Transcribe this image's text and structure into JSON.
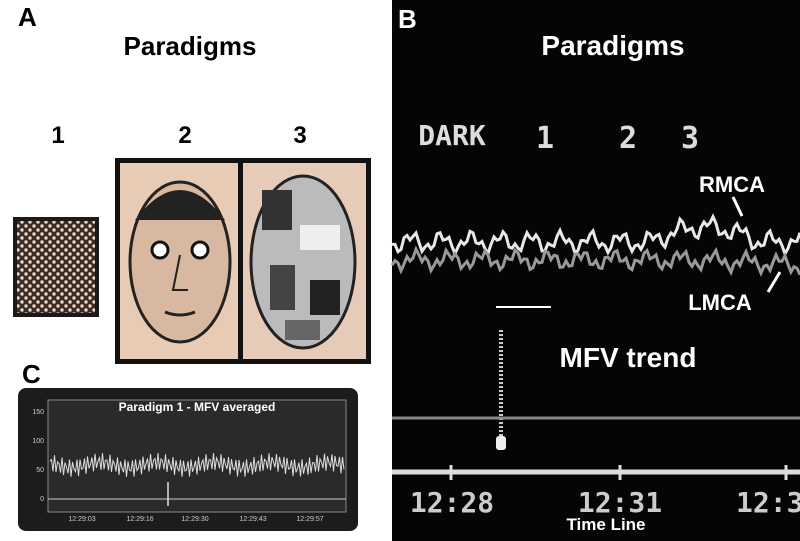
{
  "panel_a": {
    "label": "A",
    "title": "Paradigms",
    "items": [
      "1",
      "2",
      "3"
    ]
  },
  "panel_b": {
    "label": "B",
    "title": "Paradigms",
    "conditions": [
      "DARK",
      "1",
      "2",
      "3"
    ],
    "traces": [
      "RMCA",
      "LMCA"
    ],
    "annotation": "MFV trend",
    "times": [
      "12:28",
      "12:31",
      "12:3"
    ],
    "axis_label": "Time Line"
  },
  "panel_c": {
    "label": "C",
    "title": "Paradigm 1 - MFV averaged",
    "yticks": [
      "150",
      "100",
      "50",
      "0"
    ],
    "xticks": [
      "12:29:03",
      "12:29:16",
      "12:29:30",
      "12:29:43",
      "12:29:57"
    ]
  }
}
